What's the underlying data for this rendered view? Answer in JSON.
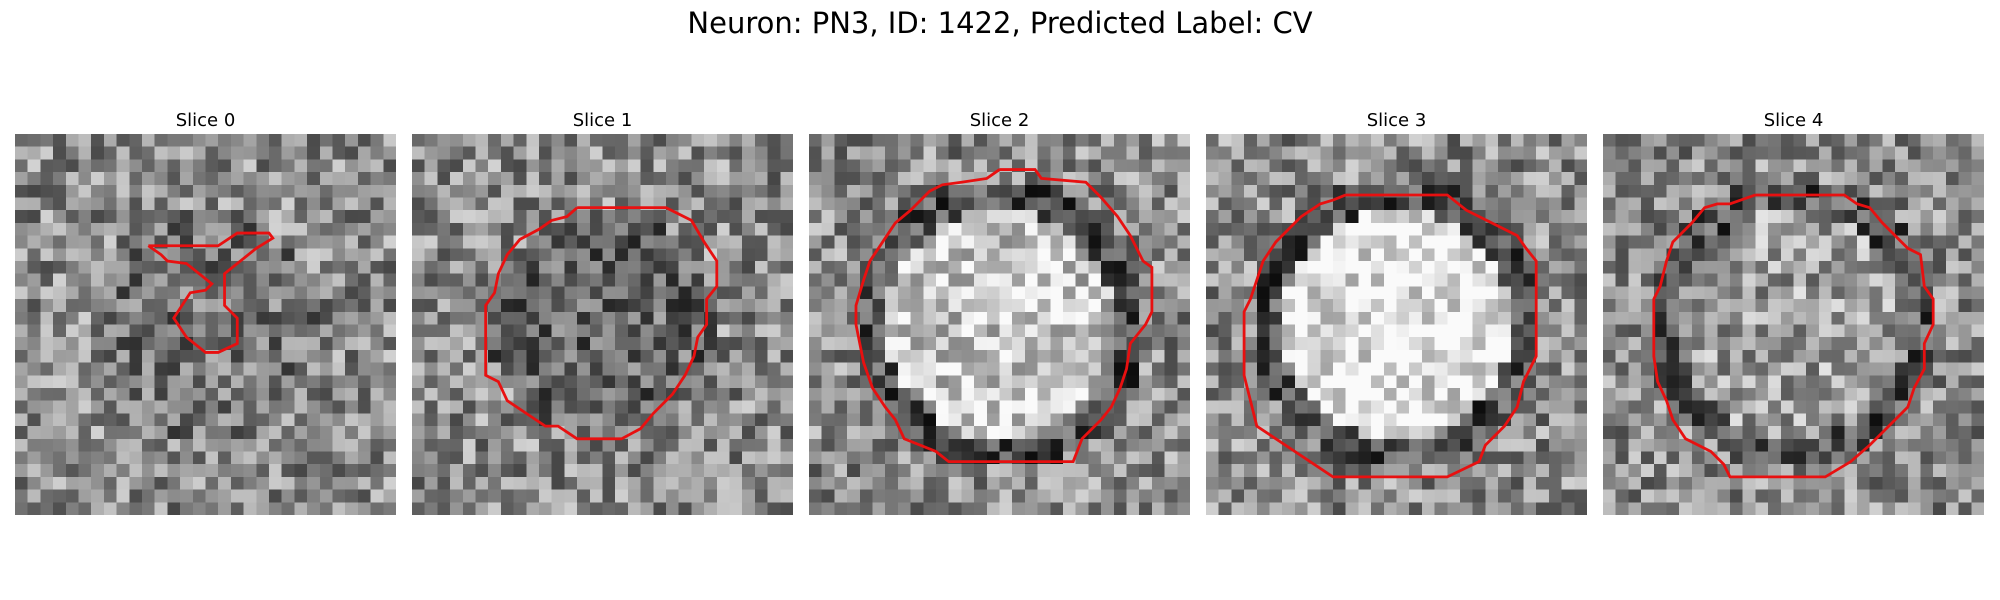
{
  "title": "Neuron: PN3, ID: 1422, Predicted Label: CV",
  "panels": [
    {
      "label": "Slice 0",
      "seed": 11,
      "center_brightness": 0.45,
      "ring_darkness": 0.0
    },
    {
      "label": "Slice 1",
      "seed": 23,
      "center_brightness": 0.4,
      "ring_darkness": 0.0
    },
    {
      "label": "Slice 2",
      "seed": 37,
      "center_brightness": 0.78,
      "ring_darkness": 0.25
    },
    {
      "label": "Slice 3",
      "seed": 41,
      "center_brightness": 0.9,
      "ring_darkness": 0.25
    },
    {
      "label": "Slice 4",
      "seed": 53,
      "center_brightness": 0.62,
      "ring_darkness": 0.22
    }
  ],
  "contour_color": "#e81010"
}
